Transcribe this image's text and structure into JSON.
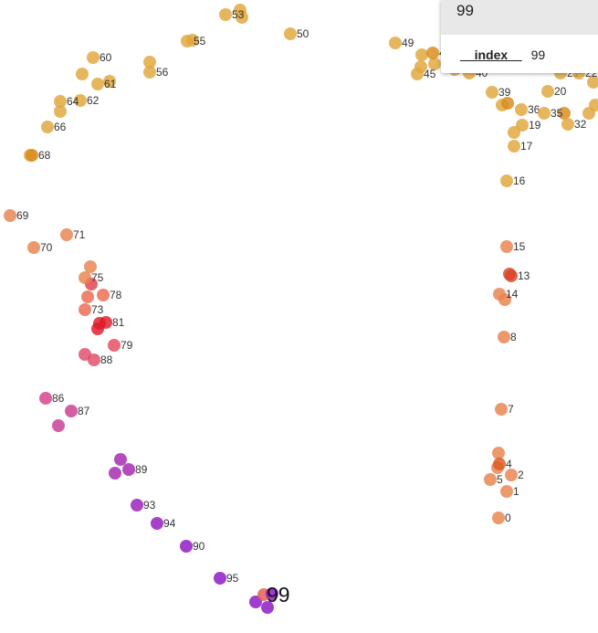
{
  "chart_data": {
    "type": "scatter",
    "title": "",
    "xlabel": "",
    "ylabel": "",
    "grid": false,
    "legend": "none",
    "xlim": [
      0,
      655
    ],
    "ylim": [
      0,
      693
    ],
    "color_scale": [
      "#8e0fc4",
      "#c8348f",
      "#e0323a",
      "#e9803f",
      "#e5a13a",
      "#dfb35a"
    ],
    "labeled_points": [
      {
        "label": "0",
        "x": 546,
        "y": 567,
        "color": "#e9834e"
      },
      {
        "label": "1",
        "x": 555,
        "y": 538,
        "color": "#e9834e"
      },
      {
        "label": "2",
        "x": 560,
        "y": 520,
        "color": "#e9834e"
      },
      {
        "label": "4",
        "x": 547,
        "y": 508,
        "color": "#d95a1e"
      },
      {
        "label": "5",
        "x": 537,
        "y": 525,
        "color": "#e9834e"
      },
      {
        "label": "7",
        "x": 549,
        "y": 448,
        "color": "#e9834e"
      },
      {
        "label": "8",
        "x": 552,
        "y": 369,
        "color": "#e9834e"
      },
      {
        "label": "14",
        "x": 547,
        "y": 322,
        "color": "#e9834e"
      },
      {
        "label": "13",
        "x": 560,
        "y": 302,
        "color": "#d9462a"
      },
      {
        "label": "15",
        "x": 555,
        "y": 270,
        "color": "#e9834e"
      },
      {
        "label": "16",
        "x": 555,
        "y": 198,
        "color": "#e0a63b"
      },
      {
        "label": "17",
        "x": 563,
        "y": 160,
        "color": "#e0a63b"
      },
      {
        "label": "19",
        "x": 572,
        "y": 137,
        "color": "#e0a63b"
      },
      {
        "label": "36",
        "x": 571,
        "y": 120,
        "color": "#e0a63b"
      },
      {
        "label": "35",
        "x": 596,
        "y": 124,
        "color": "#e0a63b"
      },
      {
        "label": "32",
        "x": 622,
        "y": 136,
        "color": "#e0a63b"
      },
      {
        "label": "20",
        "x": 600,
        "y": 100,
        "color": "#e0a63b"
      },
      {
        "label": "39",
        "x": 539,
        "y": 101,
        "color": "#e0a63b"
      },
      {
        "label": "21",
        "x": 614,
        "y": 80,
        "color": "#e0a63b"
      },
      {
        "label": "22",
        "x": 634,
        "y": 80,
        "color": "#e0a63b"
      },
      {
        "label": "40",
        "x": 514,
        "y": 80,
        "color": "#e0a63b"
      },
      {
        "label": "45",
        "x": 457,
        "y": 81,
        "color": "#e0a63b"
      },
      {
        "label": "43",
        "x": 474,
        "y": 58,
        "color": "#d98a1a"
      },
      {
        "label": "49",
        "x": 433,
        "y": 47,
        "color": "#e0a63b"
      },
      {
        "label": "50",
        "x": 318,
        "y": 37,
        "color": "#e0a63b"
      },
      {
        "label": "53",
        "x": 247,
        "y": 16,
        "color": "#e0a63b"
      },
      {
        "label": "55",
        "x": 205,
        "y": 45,
        "color": "#e0a63b"
      },
      {
        "label": "56",
        "x": 164,
        "y": 79,
        "color": "#e0a63b"
      },
      {
        "label": "60",
        "x": 102,
        "y": 63,
        "color": "#e0a63b"
      },
      {
        "label": "61",
        "x": 107,
        "y": 92,
        "color": "#e0a63b"
      },
      {
        "label": "62",
        "x": 88,
        "y": 110,
        "color": "#e0a63b"
      },
      {
        "label": "64",
        "x": 66,
        "y": 111,
        "color": "#e0a63b"
      },
      {
        "label": "66",
        "x": 52,
        "y": 139,
        "color": "#e0a63b"
      },
      {
        "label": "68",
        "x": 35,
        "y": 170,
        "color": "#d98a1a"
      },
      {
        "label": "69",
        "x": 11,
        "y": 236,
        "color": "#e9834e"
      },
      {
        "label": "70",
        "x": 37,
        "y": 271,
        "color": "#e9834e"
      },
      {
        "label": "71",
        "x": 73,
        "y": 257,
        "color": "#e9834e"
      },
      {
        "label": "75",
        "x": 93,
        "y": 304,
        "color": "#e9834e"
      },
      {
        "label": "78",
        "x": 113,
        "y": 323,
        "color": "#ec6a50"
      },
      {
        "label": "73",
        "x": 93,
        "y": 339,
        "color": "#ec6a50"
      },
      {
        "label": "81",
        "x": 116,
        "y": 353,
        "color": "#e01a2a"
      },
      {
        "label": "79",
        "x": 125,
        "y": 378,
        "color": "#e8485a"
      },
      {
        "label": "88",
        "x": 103,
        "y": 394,
        "color": "#e04a6a"
      },
      {
        "label": "86",
        "x": 50,
        "y": 436,
        "color": "#d4408a"
      },
      {
        "label": "87",
        "x": 78,
        "y": 450,
        "color": "#c83a92"
      },
      {
        "label": "89",
        "x": 141,
        "y": 514,
        "color": "#a525b0"
      },
      {
        "label": "93",
        "x": 150,
        "y": 553,
        "color": "#9a1cb8"
      },
      {
        "label": "94",
        "x": 172,
        "y": 573,
        "color": "#9318bd"
      },
      {
        "label": "90",
        "x": 204,
        "y": 598,
        "color": "#8e14c0"
      },
      {
        "label": "95",
        "x": 241,
        "y": 633,
        "color": "#8a12c4"
      }
    ],
    "unlabeled_points": [
      {
        "x": 263,
        "y": 11,
        "color": "#e0a63b"
      },
      {
        "x": 265,
        "y": 19,
        "color": "#e0a63b"
      },
      {
        "x": 211,
        "y": 44,
        "color": "#e0a63b"
      },
      {
        "x": 164,
        "y": 68,
        "color": "#e0a63b"
      },
      {
        "x": 90,
        "y": 81,
        "color": "#e0a63b"
      },
      {
        "x": 120,
        "y": 89,
        "color": "#e0a63b"
      },
      {
        "x": 66,
        "y": 122,
        "color": "#e0a63b"
      },
      {
        "x": 33,
        "y": 170,
        "color": "#e0a63b"
      },
      {
        "x": 462,
        "y": 60,
        "color": "#e0a63b"
      },
      {
        "x": 461,
        "y": 73,
        "color": "#e0a63b"
      },
      {
        "x": 476,
        "y": 70,
        "color": "#e0a63b"
      },
      {
        "x": 498,
        "y": 76,
        "color": "#e0a63b"
      },
      {
        "x": 636,
        "y": 42,
        "color": "#e0a63b"
      },
      {
        "x": 650,
        "y": 90,
        "color": "#e0a63b"
      },
      {
        "x": 550,
        "y": 115,
        "color": "#e0a63b"
      },
      {
        "x": 556,
        "y": 113,
        "color": "#d98a1a"
      },
      {
        "x": 563,
        "y": 145,
        "color": "#e0a63b"
      },
      {
        "x": 618,
        "y": 124,
        "color": "#d98a1a"
      },
      {
        "x": 645,
        "y": 124,
        "color": "#e0a63b"
      },
      {
        "x": 652,
        "y": 115,
        "color": "#e0a63b"
      },
      {
        "x": 99,
        "y": 292,
        "color": "#e9834e"
      },
      {
        "x": 100,
        "y": 311,
        "color": "#e0404a"
      },
      {
        "x": 96,
        "y": 325,
        "color": "#ec6a50"
      },
      {
        "x": 107,
        "y": 360,
        "color": "#e01a2a"
      },
      {
        "x": 109,
        "y": 354,
        "color": "#e01a2a"
      },
      {
        "x": 93,
        "y": 388,
        "color": "#e04a6a"
      },
      {
        "x": 64,
        "y": 466,
        "color": "#c83a92"
      },
      {
        "x": 132,
        "y": 503,
        "color": "#a525b0"
      },
      {
        "x": 126,
        "y": 518,
        "color": "#a525b0"
      },
      {
        "x": 546,
        "y": 496,
        "color": "#e9834e"
      },
      {
        "x": 545,
        "y": 512,
        "color": "#e9834e"
      },
      {
        "x": 558,
        "y": 300,
        "color": "#d9462a"
      },
      {
        "x": 553,
        "y": 328,
        "color": "#e9834e"
      },
      {
        "x": 280,
        "y": 659,
        "color": "#8a12c4"
      },
      {
        "x": 293,
        "y": 665,
        "color": "#8a12c4"
      },
      {
        "x": 289,
        "y": 651,
        "color": "#e85a4a"
      },
      {
        "x": 298,
        "y": 650,
        "color": "#8a12c4"
      }
    ],
    "highlight": {
      "label": "99",
      "x": 292,
      "y": 651
    }
  },
  "tooltip": {
    "header": "99",
    "field_name": "__index__",
    "field_value": "99"
  }
}
